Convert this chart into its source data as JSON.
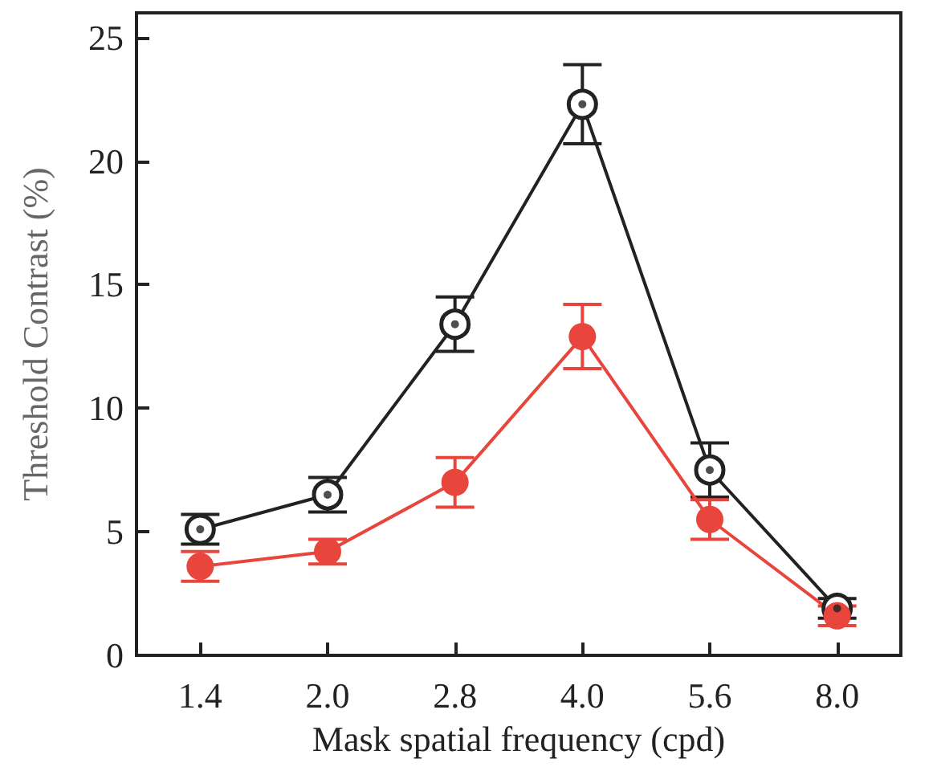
{
  "chart_data": {
    "type": "line",
    "xlabel": "Mask spatial frequency (cpd)",
    "ylabel": "Threshold Contrast (%)",
    "categories": [
      "1.4",
      "2.0",
      "2.8",
      "4.0",
      "5.6",
      "8.0"
    ],
    "series": [
      {
        "color": "#222222",
        "values": [
          5.1,
          6.5,
          13.4,
          22.3,
          7.5,
          1.9
        ],
        "errors": [
          0.6,
          0.7,
          1.1,
          1.6,
          1.1,
          0.4
        ]
      },
      {
        "color": "#e8453c",
        "values": [
          3.6,
          4.2,
          7.0,
          12.9,
          5.5,
          1.6
        ],
        "errors": [
          0.6,
          0.5,
          1.0,
          1.3,
          0.8,
          0.4
        ]
      }
    ],
    "ylim": [
      0,
      26
    ],
    "yticks": [
      0,
      5,
      10,
      15,
      20,
      25
    ],
    "grid": false,
    "marker": "circle",
    "line_style": "solid"
  }
}
